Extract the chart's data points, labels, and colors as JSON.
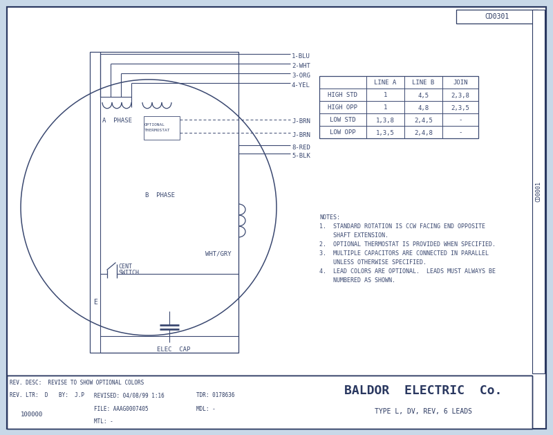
{
  "bg_color": "#c8d8e8",
  "inner_bg": "#ffffff",
  "border_color": "#2a3860",
  "line_color": "#3a4870",
  "title_box": "CD0301",
  "company": "BALDOR  ELECTRIC  Co.",
  "subtitle": "TYPE L, DV, REV, 6 LEADS",
  "rev_desc": "REV. DESC:  REVISE TO SHOW OPTIONAL COLORS",
  "rev_ltr": "D",
  "by": "J.P",
  "revised": "REVISED: 04/08/99 1:16",
  "tdr": "TDR: 0178636",
  "file": "FILE: AAAG0007405",
  "mdl": "MDL: -",
  "mtl": "MTL: -",
  "part_num": "100000",
  "notes": [
    "NOTES:",
    "1.  STANDARD ROTATION IS CCW FACING END OPPOSITE",
    "    SHAFT EXTENSION.",
    "2.  OPTIONAL THERMOSTAT IS PROVIDED WHEN SPECIFIED.",
    "3.  MULTIPLE CAPACITORS ARE CONNECTED IN PARALLEL",
    "    UNLESS OTHERWISE SPECIFIED.",
    "4.  LEAD COLORS ARE OPTIONAL.  LEADS MUST ALWAYS BE",
    "    NUMBERED AS SHOWN."
  ],
  "table_headers": [
    "",
    "LINE A",
    "LINE B",
    "JOIN"
  ],
  "table_rows": [
    [
      "HIGH STD",
      "1",
      "4,5",
      "2,3,8"
    ],
    [
      "HIGH OPP",
      "1",
      "4,8",
      "2,3,5"
    ],
    [
      "LOW STD",
      "1,3,8",
      "2,4,5",
      "-"
    ],
    [
      "LOW OPP",
      "1,3,5",
      "2,4,8",
      "-"
    ]
  ],
  "wire_labels": [
    "1-BLU",
    "2-WHT",
    "3-ORG",
    "4-YEL",
    "J-BRN",
    "J-BRN",
    "8-RED",
    "5-BLK"
  ],
  "vertical_text": "CD0001"
}
